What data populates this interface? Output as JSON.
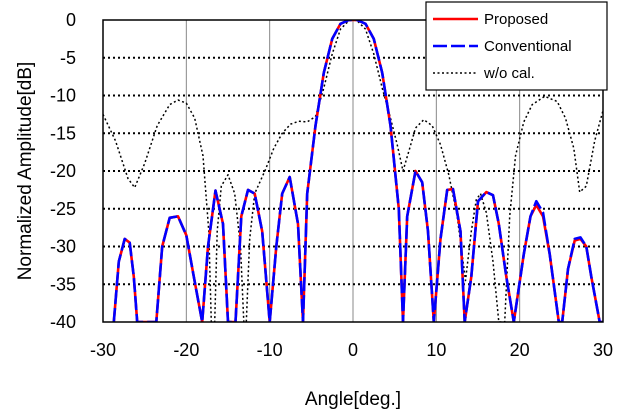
{
  "chart_data": {
    "type": "line",
    "title": "",
    "xlabel": "Angle[deg.]",
    "ylabel": "Normalized Amplitude[dB]",
    "xlim": [
      -30,
      30
    ],
    "ylim": [
      -40,
      0
    ],
    "xticks": [
      -30,
      -20,
      -10,
      0,
      10,
      20,
      30
    ],
    "yticks": [
      0,
      -5,
      -10,
      -15,
      -20,
      -25,
      -30,
      -35,
      -40
    ],
    "xtick_labels": [
      "-30",
      "-20",
      "-10",
      "0",
      "10",
      "20",
      "30"
    ],
    "ytick_labels": [
      "0",
      "-5",
      "-10",
      "-15",
      "-20",
      "-25",
      "-30",
      "-35",
      "-40"
    ],
    "grid": "x solid gray, y dotted black",
    "legend_position": "top-right",
    "series": [
      {
        "name": "w/o cal.",
        "style": "dotted",
        "color": "#000000",
        "x": [
          -30,
          -28.5,
          -27,
          -26.2,
          -25,
          -23.5,
          -22,
          -21,
          -20,
          -19,
          -18,
          -17.3,
          -17,
          -16.6,
          -16.3,
          -15.8,
          -15,
          -14.2,
          -13.5,
          -13.1,
          -12.8,
          -12.4,
          -11.8,
          -10.5,
          -9.5,
          -8.5,
          -7.5,
          -6.5,
          -5.5,
          -4.5,
          -3.5,
          -2.5,
          -1.5,
          -0.5,
          0,
          0.5,
          1.5,
          2.5,
          3.5,
          4.5,
          5.3,
          6,
          6.8,
          7.5,
          8.5,
          9.5,
          10.5,
          11.5,
          12.5,
          13.5,
          14.2,
          14.8,
          15.3,
          16,
          16.8,
          17.5,
          18.2,
          18.8,
          19.5,
          20.5,
          21.5,
          23,
          24.5,
          25.5,
          26.5,
          27.2,
          28,
          29,
          30
        ],
        "y": [
          -12.5,
          -16,
          -21,
          -22.2,
          -19,
          -14,
          -11.2,
          -10.6,
          -11,
          -13,
          -18,
          -28,
          -40,
          -40,
          -28,
          -22,
          -20.5,
          -23,
          -30,
          -40,
          -40,
          -29,
          -23,
          -19.8,
          -17,
          -15,
          -13.8,
          -13.4,
          -13.5,
          -12.8,
          -9,
          -4.5,
          -1.2,
          -0.1,
          0,
          -0.1,
          -1.2,
          -4.5,
          -9,
          -13,
          -16.5,
          -20,
          -17,
          -14.3,
          -13.2,
          -14,
          -16.5,
          -20.5,
          -26,
          -34.5,
          -28,
          -23.8,
          -23,
          -25.5,
          -32,
          -40,
          -40,
          -26,
          -18,
          -13.5,
          -11.2,
          -10.1,
          -10.8,
          -13,
          -17,
          -22.8,
          -22,
          -16,
          -12
        ]
      },
      {
        "name": "Proposed",
        "style": "solid",
        "color": "#ff0000",
        "x": [
          -28.7,
          -28.1,
          -27.4,
          -26.8,
          -26.3,
          -25.9,
          -23.6,
          -22.9,
          -22,
          -21,
          -20,
          -19.1,
          -18.1,
          -17.4,
          -16.5,
          -15.6,
          -15,
          -14.1,
          -13.4,
          -12.6,
          -11.8,
          -10.9,
          -10,
          -9.2,
          -8.5,
          -7.6,
          -6.6,
          -6,
          -5.5,
          -4.5,
          -3.5,
          -2.5,
          -1.5,
          -0.5,
          0,
          0.5,
          1.5,
          2.5,
          3.5,
          4.5,
          5.5,
          6,
          6.5,
          7.5,
          8.3,
          9,
          9.7,
          10.5,
          11.3,
          12,
          12.9,
          13.4,
          14.2,
          15,
          16,
          16.8,
          17.5,
          18.4,
          19.3,
          20.5,
          21.3,
          22,
          22.8,
          23.6,
          24.7,
          25.1,
          25.8,
          26.6,
          27.3,
          28,
          28.6,
          29.6,
          30
        ],
        "y": [
          -40,
          -32,
          -29,
          -29.5,
          -34,
          -40,
          -40,
          -30,
          -26.2,
          -26,
          -28.5,
          -34,
          -40,
          -30,
          -22.6,
          -27,
          -40,
          -40,
          -26,
          -22.5,
          -23,
          -28,
          -40,
          -30,
          -23,
          -20.8,
          -27,
          -40,
          -23,
          -14,
          -7,
          -2.5,
          -0.5,
          0,
          0,
          0,
          -0.5,
          -2.5,
          -7,
          -14,
          -25,
          -40,
          -26,
          -20,
          -21.5,
          -28,
          -40,
          -29,
          -22.5,
          -22.4,
          -28,
          -40,
          -34,
          -24,
          -22.8,
          -23.2,
          -27,
          -34,
          -40,
          -31,
          -26,
          -24.5,
          -26,
          -31,
          -40,
          -40,
          -33,
          -29.2,
          -29,
          -30,
          -34,
          -40,
          -40
        ]
      },
      {
        "name": "Conventional",
        "style": "dashed",
        "color": "#0000ff",
        "x": [
          -28.7,
          -28.1,
          -27.4,
          -26.8,
          -26.3,
          -25.9,
          -23.6,
          -22.9,
          -22,
          -21,
          -20,
          -19.1,
          -18.1,
          -17.4,
          -16.5,
          -15.6,
          -15,
          -14.1,
          -13.4,
          -12.6,
          -11.8,
          -10.9,
          -10,
          -9.2,
          -8.5,
          -7.6,
          -6.6,
          -6,
          -5.5,
          -4.5,
          -3.5,
          -2.5,
          -1.5,
          -0.5,
          0,
          0.5,
          1.5,
          2.5,
          3.5,
          4.5,
          5.5,
          6,
          6.5,
          7.5,
          8.3,
          9,
          9.7,
          10.5,
          11.3,
          12,
          12.9,
          13.4,
          14.2,
          15,
          16,
          16.8,
          17.5,
          18.4,
          19.3,
          20.5,
          21.3,
          22,
          22.8,
          23.6,
          24.7,
          25.1,
          25.8,
          26.6,
          27.3,
          28,
          28.6,
          29.6,
          30
        ],
        "y": [
          -40,
          -32,
          -29,
          -29.5,
          -34,
          -40,
          -40,
          -30,
          -26.2,
          -26,
          -28.5,
          -34,
          -40,
          -30,
          -22.6,
          -27,
          -40,
          -40,
          -26,
          -22.5,
          -23,
          -28,
          -40,
          -30,
          -23,
          -20.8,
          -27,
          -40,
          -23,
          -14,
          -7,
          -2.5,
          -0.5,
          0,
          0,
          0,
          -0.5,
          -2.5,
          -7,
          -14,
          -25,
          -40,
          -26,
          -20,
          -21.5,
          -28,
          -40,
          -29,
          -22.5,
          -22.4,
          -28,
          -40,
          -34,
          -24,
          -22.8,
          -23.2,
          -27,
          -34,
          -40,
          -31,
          -26,
          -24,
          -25.5,
          -31,
          -40,
          -40,
          -33,
          -29,
          -28.8,
          -30,
          -34,
          -40,
          -40
        ]
      }
    ],
    "legend_entries": [
      {
        "label": "Proposed",
        "color": "#ff0000",
        "style": "solid"
      },
      {
        "label": "Conventional",
        "color": "#0000ff",
        "style": "dashed"
      },
      {
        "label": "w/o cal.",
        "color": "#000000",
        "style": "dotted"
      }
    ]
  }
}
